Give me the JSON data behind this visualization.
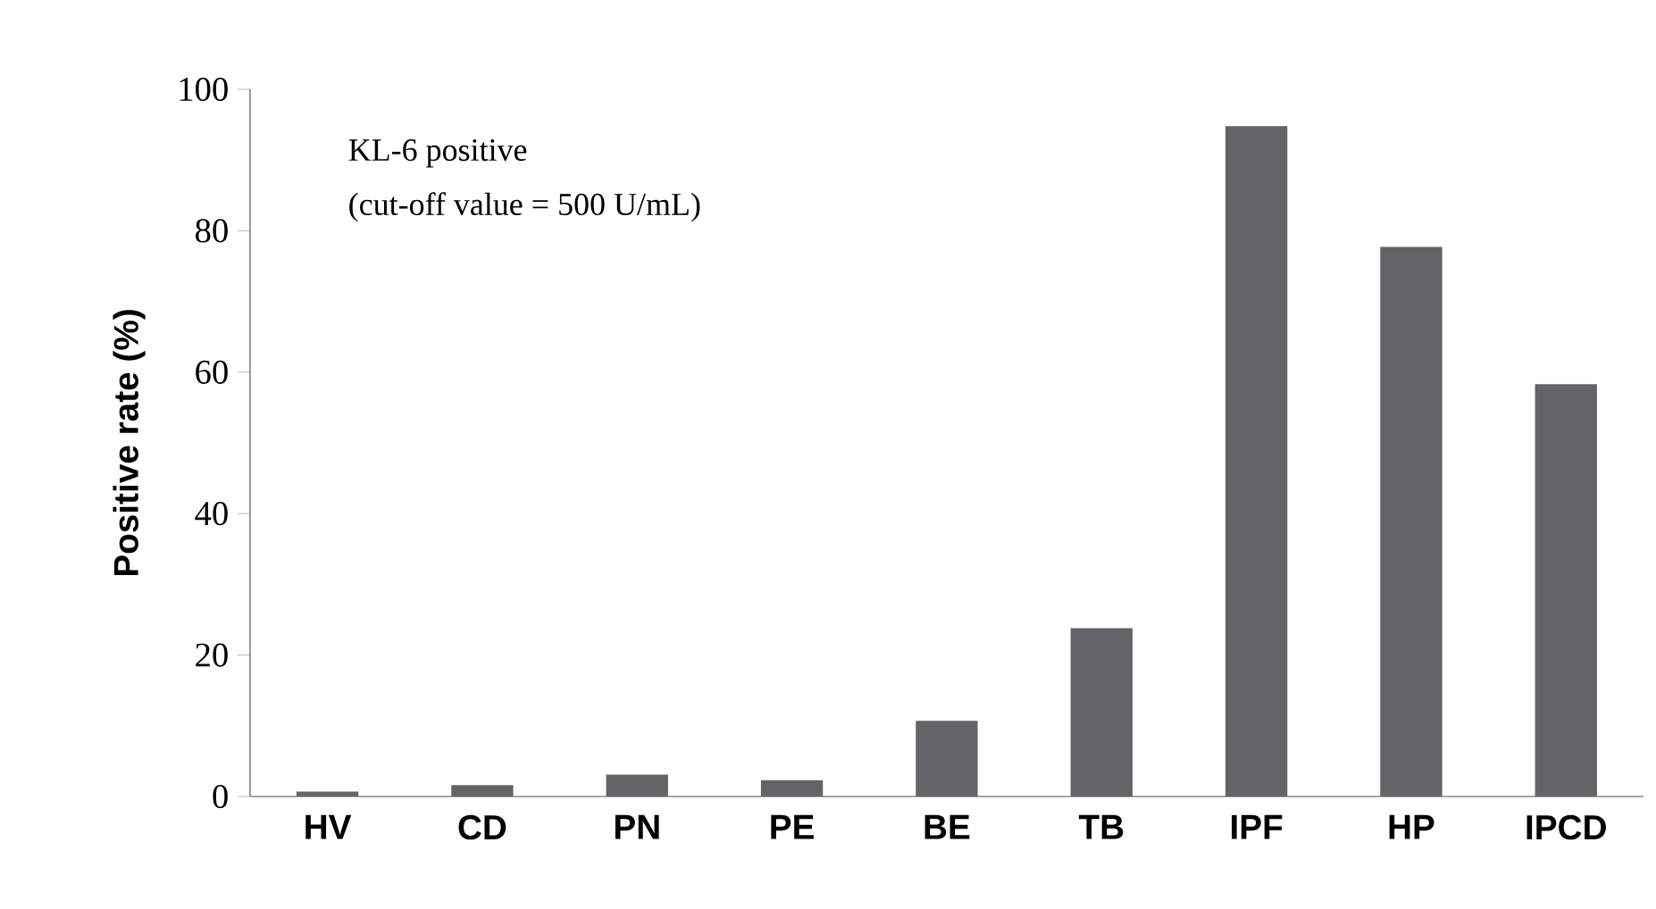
{
  "chart_data": {
    "type": "bar",
    "ylabel": "Positive rate (%)",
    "annotations": [
      "KL-6 positive",
      "(cut-off value = 500 U/mL)"
    ],
    "categories": [
      "HV",
      "CD",
      "PN",
      "PE",
      "BE",
      "TB",
      "IPF",
      "HP",
      "IPCD"
    ],
    "values": [
      0.7,
      1.6,
      3.1,
      2.3,
      10.7,
      23.8,
      94.8,
      77.7,
      58.3
    ],
    "color": "#636466",
    "ylim": [
      0,
      100
    ],
    "yticks": [
      0,
      20,
      40,
      60,
      80,
      100
    ]
  }
}
